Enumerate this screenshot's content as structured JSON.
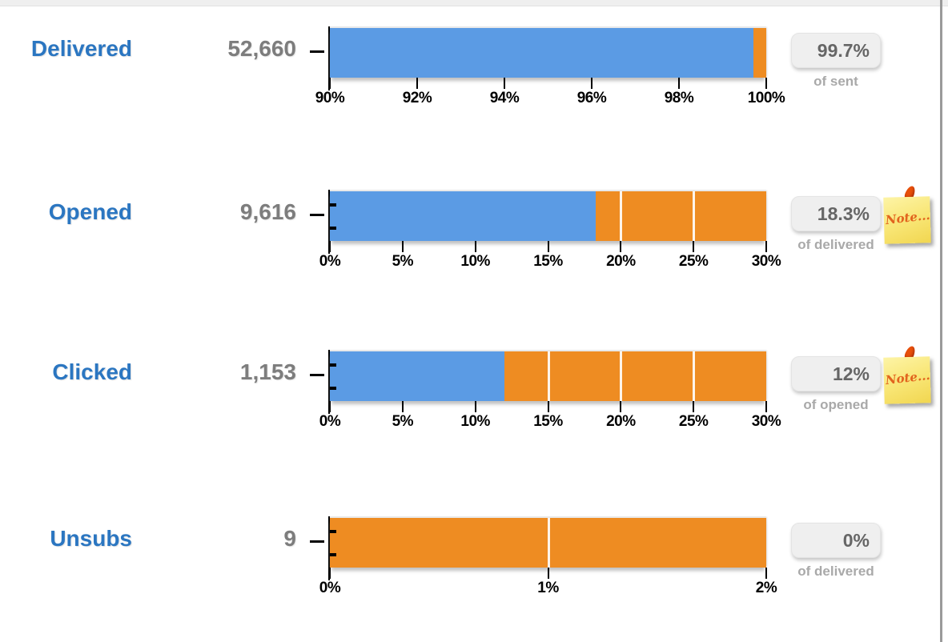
{
  "page": {
    "background": "#ffffff",
    "top_strip_color": "#efefef",
    "right_border_color": "#9a9a9a"
  },
  "colors": {
    "bar_blue": "#5b9be4",
    "bar_orange": "#ee8c22",
    "label_blue": "#2b76c1",
    "value_gray": "#7d7d7d",
    "badge_bg": "#efefef",
    "badge_text": "#666666",
    "caption_gray": "#a9a9a9",
    "axis_black": "#000000",
    "gridline_white": "#ffffff"
  },
  "note_icon": {
    "label": "Note...",
    "text_color": "#e2641e",
    "pin_color": "#e8500a"
  },
  "chart_data": [
    {
      "type": "bar",
      "metric": "Delivered",
      "count": "52,660",
      "value_pct": 99.7,
      "badge": "99.7%",
      "caption": "of sent",
      "axis": {
        "min": 90,
        "max": 100,
        "ticks": [
          {
            "label": "90%",
            "value": 90
          },
          {
            "label": "92%",
            "value": 92
          },
          {
            "label": "94%",
            "value": 94
          },
          {
            "label": "96%",
            "value": 96
          },
          {
            "label": "98%",
            "value": 98
          },
          {
            "label": "100%",
            "value": 100
          }
        ]
      },
      "series": [
        {
          "name": "value",
          "color_key": "bar_blue",
          "from": 90,
          "to": 99.7
        },
        {
          "name": "remainder",
          "color_key": "bar_orange",
          "from": 99.7,
          "to": 100
        }
      ],
      "has_note": false,
      "inner_axis_ticks": false
    },
    {
      "type": "bar",
      "metric": "Opened",
      "count": "9,616",
      "value_pct": 18.3,
      "badge": "18.3%",
      "caption": "of delivered",
      "axis": {
        "min": 0,
        "max": 30,
        "ticks": [
          {
            "label": "0%",
            "value": 0
          },
          {
            "label": "5%",
            "value": 5
          },
          {
            "label": "10%",
            "value": 10
          },
          {
            "label": "15%",
            "value": 15
          },
          {
            "label": "20%",
            "value": 20
          },
          {
            "label": "25%",
            "value": 25
          },
          {
            "label": "30%",
            "value": 30
          }
        ]
      },
      "series": [
        {
          "name": "value",
          "color_key": "bar_blue",
          "from": 0,
          "to": 18.3
        },
        {
          "name": "remainder",
          "color_key": "bar_orange",
          "from": 18.3,
          "to": 30
        }
      ],
      "has_note": true,
      "inner_axis_ticks": true
    },
    {
      "type": "bar",
      "metric": "Clicked",
      "count": "1,153",
      "value_pct": 12,
      "badge": "12%",
      "caption": "of opened",
      "axis": {
        "min": 0,
        "max": 30,
        "ticks": [
          {
            "label": "0%",
            "value": 0
          },
          {
            "label": "5%",
            "value": 5
          },
          {
            "label": "10%",
            "value": 10
          },
          {
            "label": "15%",
            "value": 15
          },
          {
            "label": "20%",
            "value": 20
          },
          {
            "label": "25%",
            "value": 25
          },
          {
            "label": "30%",
            "value": 30
          }
        ]
      },
      "series": [
        {
          "name": "value",
          "color_key": "bar_blue",
          "from": 0,
          "to": 12
        },
        {
          "name": "remainder",
          "color_key": "bar_orange",
          "from": 12,
          "to": 30
        }
      ],
      "has_note": true,
      "inner_axis_ticks": true
    },
    {
      "type": "bar",
      "metric": "Unsubs",
      "count": "9",
      "value_pct": 0,
      "badge": "0%",
      "caption": "of delivered",
      "axis": {
        "min": 0,
        "max": 2,
        "ticks": [
          {
            "label": "0%",
            "value": 0
          },
          {
            "label": "1%",
            "value": 1
          },
          {
            "label": "2%",
            "value": 2
          }
        ]
      },
      "series": [
        {
          "name": "value",
          "color_key": "bar_blue",
          "from": 0,
          "to": 0
        },
        {
          "name": "remainder",
          "color_key": "bar_orange",
          "from": 0,
          "to": 2
        }
      ],
      "has_note": false,
      "inner_axis_ticks": true
    }
  ]
}
